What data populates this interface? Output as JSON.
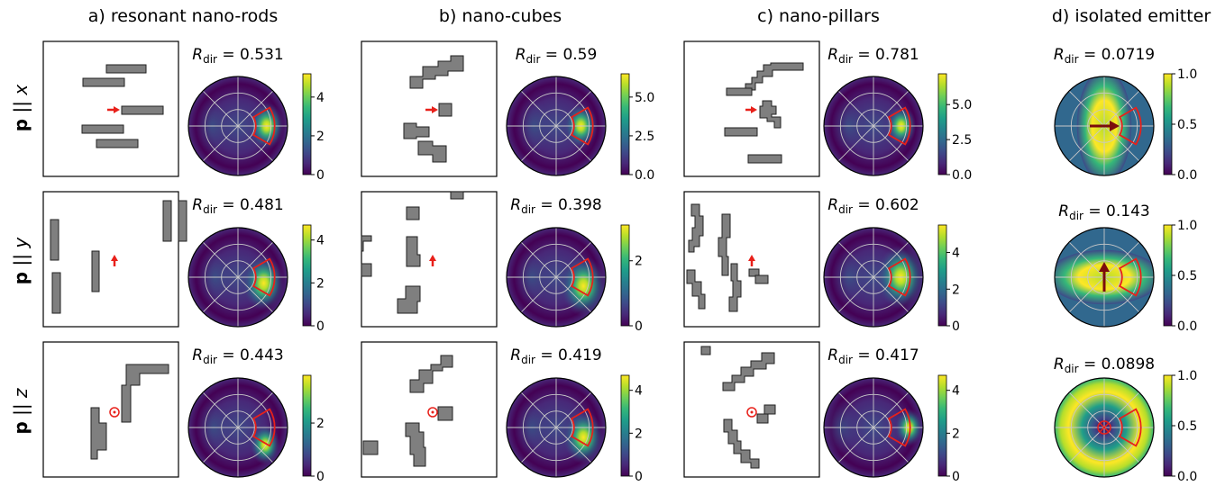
{
  "columns": [
    {
      "id": "a",
      "title": "a) resonant nano-rods"
    },
    {
      "id": "b",
      "title": "b) nano-cubes"
    },
    {
      "id": "c",
      "title": "c) nano-pillars"
    },
    {
      "id": "d",
      "title": "d) isolated emitter"
    }
  ],
  "rows": [
    {
      "id": "x",
      "label_bold": "p",
      "label_sep": " || ",
      "label_axis": "x"
    },
    {
      "id": "y",
      "label_bold": "p",
      "label_sep": " || ",
      "label_axis": "y"
    },
    {
      "id": "z",
      "label_bold": "p",
      "label_sep": " || ",
      "label_axis": "z"
    }
  ],
  "r_dir_symbol": "R",
  "r_dir_sub": "dir",
  "colors": {
    "structure_fill": "#7f7f7f",
    "structure_edge": "#222222",
    "arrow_red": "#e8201a",
    "arrow_dark": "#7b0d0d",
    "target_sector": "#e8201a",
    "grid": "#c8c8c8",
    "viridis": [
      "#440154",
      "#482878",
      "#3e4a89",
      "#31688e",
      "#26828e",
      "#1f9e89",
      "#35b779",
      "#6ece58",
      "#b5de2b",
      "#fde725"
    ]
  },
  "chart_data": [
    {
      "id": "a-x",
      "type": "polar-heatmap",
      "title_value": "0.531",
      "colorbar": {
        "min": 0,
        "max": 5.2,
        "ticks": [
          0,
          2,
          4
        ],
        "tick_labels": [
          "0",
          "2",
          "4"
        ]
      }
    },
    {
      "id": "b-x",
      "type": "polar-heatmap",
      "title_value": "0.59",
      "colorbar": {
        "min": 0,
        "max": 6.5,
        "ticks": [
          0,
          2.5,
          5
        ],
        "tick_labels": [
          "0.0",
          "2.5",
          "5.0"
        ]
      }
    },
    {
      "id": "c-x",
      "type": "polar-heatmap",
      "title_value": "0.781",
      "colorbar": {
        "min": 0,
        "max": 7.2,
        "ticks": [
          0,
          2.5,
          5
        ],
        "tick_labels": [
          "0.0",
          "2.5",
          "5.0"
        ]
      }
    },
    {
      "id": "d-x",
      "type": "polar-heatmap",
      "title_value": "0.0719",
      "colorbar": {
        "min": 0,
        "max": 1,
        "ticks": [
          0,
          0.5,
          1
        ],
        "tick_labels": [
          "0.0",
          "0.5",
          "1.0"
        ]
      }
    },
    {
      "id": "a-y",
      "type": "polar-heatmap",
      "title_value": "0.481",
      "colorbar": {
        "min": 0,
        "max": 4.7,
        "ticks": [
          0,
          2,
          4
        ],
        "tick_labels": [
          "0",
          "2",
          "4"
        ]
      }
    },
    {
      "id": "b-y",
      "type": "polar-heatmap",
      "title_value": "0.398",
      "colorbar": {
        "min": 0,
        "max": 3.1,
        "ticks": [
          0,
          2
        ],
        "tick_labels": [
          "0",
          "2"
        ]
      }
    },
    {
      "id": "c-y",
      "type": "polar-heatmap",
      "title_value": "0.602",
      "colorbar": {
        "min": 0,
        "max": 5.5,
        "ticks": [
          0,
          2,
          4
        ],
        "tick_labels": [
          "0",
          "2",
          "4"
        ]
      }
    },
    {
      "id": "d-y",
      "type": "polar-heatmap",
      "title_value": "0.143",
      "colorbar": {
        "min": 0,
        "max": 1,
        "ticks": [
          0,
          0.5,
          1
        ],
        "tick_labels": [
          "0.0",
          "0.5",
          "1.0"
        ]
      }
    },
    {
      "id": "a-z",
      "type": "polar-heatmap",
      "title_value": "0.443",
      "colorbar": {
        "min": 0,
        "max": 3.8,
        "ticks": [
          0,
          2
        ],
        "tick_labels": [
          "0",
          "2"
        ]
      }
    },
    {
      "id": "b-z",
      "type": "polar-heatmap",
      "title_value": "0.419",
      "colorbar": {
        "min": 0,
        "max": 4.7,
        "ticks": [
          0,
          2,
          4
        ],
        "tick_labels": [
          "0",
          "2",
          "4"
        ]
      }
    },
    {
      "id": "c-z",
      "type": "polar-heatmap",
      "title_value": "0.417",
      "colorbar": {
        "min": 0,
        "max": 4.7,
        "ticks": [
          0,
          2,
          4
        ],
        "tick_labels": [
          "0",
          "2",
          "4"
        ]
      }
    },
    {
      "id": "d-z",
      "type": "polar-heatmap",
      "title_value": "0.0898",
      "colorbar": {
        "min": 0,
        "max": 1,
        "ticks": [
          0,
          0.5,
          1
        ],
        "tick_labels": [
          "0.0",
          "0.5",
          "1.0"
        ]
      }
    }
  ]
}
